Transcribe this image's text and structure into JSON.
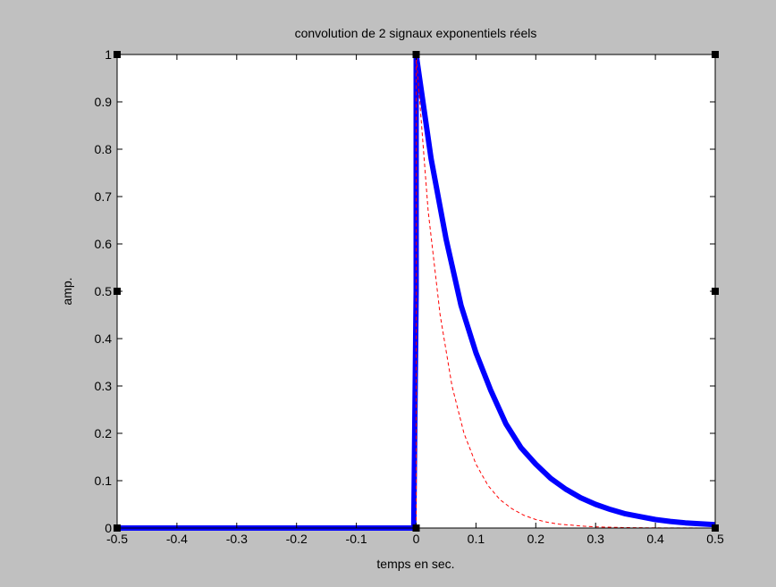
{
  "chart_data": {
    "type": "line",
    "title": "convolution de 2 signaux exponentiels réels",
    "xlabel": "temps en sec.",
    "ylabel": "amp.",
    "xlim": [
      -0.5,
      0.5
    ],
    "ylim": [
      0,
      1
    ],
    "grid": false,
    "background": "#c0c0c0",
    "plot_background": "#ffffff",
    "x_ticks": [
      "-0.5",
      "-0.4",
      "-0.3",
      "-0.2",
      "-0.1",
      "0",
      "0.1",
      "0.2",
      "0.3",
      "0.4",
      "0.5"
    ],
    "y_ticks": [
      "0",
      "0.1",
      "0.2",
      "0.3",
      "0.4",
      "0.5",
      "0.6",
      "0.7",
      "0.8",
      "0.9",
      "1"
    ],
    "series": [
      {
        "style": "solid-thick",
        "color": "#0000ff",
        "x": [
          -0.5,
          -0.004,
          0,
          0,
          0.025,
          0.05,
          0.075,
          0.1,
          0.125,
          0.15,
          0.175,
          0.2,
          0.225,
          0.25,
          0.275,
          0.3,
          0.325,
          0.35,
          0.375,
          0.4,
          0.425,
          0.45,
          0.475,
          0.5
        ],
        "y": [
          0,
          0,
          0.5,
          1.0,
          0.78,
          0.61,
          0.47,
          0.37,
          0.29,
          0.22,
          0.17,
          0.135,
          0.105,
          0.082,
          0.064,
          0.05,
          0.039,
          0.03,
          0.024,
          0.018,
          0.014,
          0.011,
          0.009,
          0.007
        ]
      },
      {
        "style": "dashed",
        "color": "#ff0000",
        "x": [
          -0.5,
          0,
          0,
          0.02,
          0.04,
          0.06,
          0.08,
          0.1,
          0.12,
          0.14,
          0.16,
          0.18,
          0.2,
          0.22,
          0.24,
          0.26,
          0.28,
          0.3,
          0.35,
          0.4,
          0.45,
          0.5
        ],
        "y": [
          0,
          0,
          1.0,
          0.67,
          0.45,
          0.3,
          0.2,
          0.135,
          0.09,
          0.06,
          0.041,
          0.027,
          0.018,
          0.012,
          0.008,
          0.006,
          0.004,
          0.0025,
          0.001,
          0.0003,
          0.0001,
          0
        ]
      }
    ],
    "markers": [
      {
        "x": -0.5,
        "y": 1
      },
      {
        "x": 0,
        "y": 1
      },
      {
        "x": 0.5,
        "y": 1
      },
      {
        "x": -0.5,
        "y": 0.5
      },
      {
        "x": 0.5,
        "y": 0.5
      },
      {
        "x": -0.5,
        "y": 0
      },
      {
        "x": 0,
        "y": 0
      },
      {
        "x": 0.5,
        "y": 0
      }
    ]
  }
}
